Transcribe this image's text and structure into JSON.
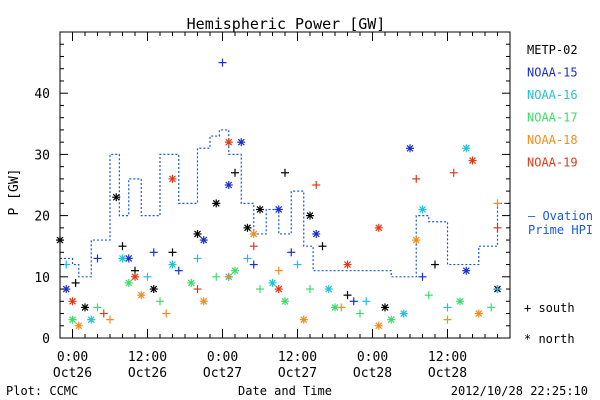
{
  "chart_data": {
    "type": "scatter",
    "title": "Hemispheric Power [GW]",
    "ylabel": "P [GW]",
    "xlabel": "Date and Time",
    "xlim": [
      "2012-10-25T22:00",
      "2012-10-28T22:00"
    ],
    "ylim": [
      0,
      50
    ],
    "yticks": [
      0,
      10,
      20,
      30,
      40
    ],
    "xticks": [
      {
        "time": "2012-10-26T00:00",
        "line1": "0:00",
        "line2": "Oct26"
      },
      {
        "time": "2012-10-26T12:00",
        "line1": "12:00",
        "line2": "Oct26"
      },
      {
        "time": "2012-10-27T00:00",
        "line1": "0:00",
        "line2": "Oct27"
      },
      {
        "time": "2012-10-27T12:00",
        "line1": "12:00",
        "line2": "Oct27"
      },
      {
        "time": "2012-10-28T00:00",
        "line1": "0:00",
        "line2": "Oct28"
      },
      {
        "time": "2012-10-28T12:00",
        "line1": "12:00",
        "line2": "Oct28"
      }
    ],
    "grid": false,
    "legend_position": "right",
    "symbols": {
      "south": "+",
      "north": "*"
    },
    "series": [
      {
        "name": "METP-02",
        "color": "#000000",
        "points": [
          [
            "2012-10-25T22:00",
            16,
            "north"
          ],
          [
            "2012-10-26T00:30",
            9,
            "south"
          ],
          [
            "2012-10-26T02:00",
            5,
            "north"
          ],
          [
            "2012-10-26T07:00",
            23,
            "north"
          ],
          [
            "2012-10-26T08:00",
            15,
            "south"
          ],
          [
            "2012-10-26T10:00",
            11,
            "south"
          ],
          [
            "2012-10-26T13:00",
            8,
            "north"
          ],
          [
            "2012-10-26T16:00",
            14,
            "south"
          ],
          [
            "2012-10-26T20:00",
            17,
            "north"
          ],
          [
            "2012-10-26T23:00",
            22,
            "north"
          ],
          [
            "2012-10-27T02:00",
            27,
            "south"
          ],
          [
            "2012-10-27T04:00",
            18,
            "north"
          ],
          [
            "2012-10-27T06:00",
            21,
            "north"
          ],
          [
            "2012-10-27T10:00",
            27,
            "south"
          ],
          [
            "2012-10-27T14:00",
            20,
            "north"
          ],
          [
            "2012-10-27T16:00",
            15,
            "south"
          ],
          [
            "2012-10-27T20:00",
            7,
            "south"
          ],
          [
            "2012-10-28T02:00",
            5,
            "north"
          ],
          [
            "2012-10-28T10:00",
            12,
            "south"
          ],
          [
            "2012-10-28T20:00",
            8,
            "north"
          ]
        ]
      },
      {
        "name": "NOAA-15",
        "color": "#1a2fc9",
        "points": [
          [
            "2012-10-25T23:00",
            8,
            "north"
          ],
          [
            "2012-10-26T04:00",
            13,
            "south"
          ],
          [
            "2012-10-26T09:00",
            13,
            "north"
          ],
          [
            "2012-10-26T13:00",
            14,
            "south"
          ],
          [
            "2012-10-26T17:00",
            11,
            "south"
          ],
          [
            "2012-10-26T21:00",
            16,
            "north"
          ],
          [
            "2012-10-27T00:00",
            45,
            "south"
          ],
          [
            "2012-10-27T01:00",
            25,
            "north"
          ],
          [
            "2012-10-27T03:00",
            32,
            "north"
          ],
          [
            "2012-10-27T05:00",
            12,
            "south"
          ],
          [
            "2012-10-27T09:00",
            21,
            "north"
          ],
          [
            "2012-10-27T11:00",
            14,
            "south"
          ],
          [
            "2012-10-27T15:00",
            17,
            "north"
          ],
          [
            "2012-10-27T21:00",
            6,
            "south"
          ],
          [
            "2012-10-28T06:00",
            31,
            "north"
          ],
          [
            "2012-10-28T08:00",
            10,
            "south"
          ],
          [
            "2012-10-28T15:00",
            11,
            "north"
          ],
          [
            "2012-10-28T20:00",
            8,
            "south"
          ]
        ]
      },
      {
        "name": "NOAA-16",
        "color": "#1fc2d9",
        "points": [
          [
            "2012-10-25T23:00",
            12,
            "south"
          ],
          [
            "2012-10-26T03:00",
            3,
            "north"
          ],
          [
            "2012-10-26T08:00",
            13,
            "north"
          ],
          [
            "2012-10-26T12:00",
            10,
            "south"
          ],
          [
            "2012-10-26T16:00",
            12,
            "north"
          ],
          [
            "2012-10-26T20:00",
            13,
            "south"
          ],
          [
            "2012-10-27T01:00",
            10,
            "north"
          ],
          [
            "2012-10-27T04:00",
            13,
            "south"
          ],
          [
            "2012-10-27T08:00",
            9,
            "north"
          ],
          [
            "2012-10-27T12:00",
            12,
            "south"
          ],
          [
            "2012-10-27T17:00",
            8,
            "north"
          ],
          [
            "2012-10-27T23:00",
            6,
            "south"
          ],
          [
            "2012-10-28T05:00",
            4,
            "north"
          ],
          [
            "2012-10-28T08:00",
            21,
            "north"
          ],
          [
            "2012-10-28T12:00",
            5,
            "south"
          ],
          [
            "2012-10-28T15:00",
            31,
            "north"
          ],
          [
            "2012-10-28T20:00",
            8,
            "south"
          ]
        ]
      },
      {
        "name": "NOAA-17",
        "color": "#3ddc6a",
        "points": [
          [
            "2012-10-26T00:00",
            3,
            "north"
          ],
          [
            "2012-10-26T04:00",
            5,
            "south"
          ],
          [
            "2012-10-26T09:00",
            9,
            "north"
          ],
          [
            "2012-10-26T14:00",
            6,
            "south"
          ],
          [
            "2012-10-26T19:00",
            9,
            "north"
          ],
          [
            "2012-10-26T23:00",
            10,
            "south"
          ],
          [
            "2012-10-27T02:00",
            11,
            "north"
          ],
          [
            "2012-10-27T06:00",
            8,
            "south"
          ],
          [
            "2012-10-27T10:00",
            6,
            "north"
          ],
          [
            "2012-10-27T14:00",
            8,
            "south"
          ],
          [
            "2012-10-27T18:00",
            5,
            "north"
          ],
          [
            "2012-10-27T22:00",
            4,
            "south"
          ],
          [
            "2012-10-28T03:00",
            3,
            "north"
          ],
          [
            "2012-10-28T09:00",
            7,
            "south"
          ],
          [
            "2012-10-28T14:00",
            6,
            "north"
          ],
          [
            "2012-10-28T19:00",
            5,
            "south"
          ]
        ]
      },
      {
        "name": "NOAA-18",
        "color": "#f08c1e",
        "points": [
          [
            "2012-10-26T01:00",
            2,
            "north"
          ],
          [
            "2012-10-26T06:00",
            3,
            "south"
          ],
          [
            "2012-10-26T11:00",
            7,
            "north"
          ],
          [
            "2012-10-26T15:00",
            4,
            "south"
          ],
          [
            "2012-10-26T21:00",
            6,
            "north"
          ],
          [
            "2012-10-27T01:00",
            10,
            "south"
          ],
          [
            "2012-10-27T05:00",
            17,
            "north"
          ],
          [
            "2012-10-27T09:00",
            11,
            "south"
          ],
          [
            "2012-10-27T13:00",
            3,
            "north"
          ],
          [
            "2012-10-27T19:00",
            5,
            "south"
          ],
          [
            "2012-10-28T01:00",
            2,
            "north"
          ],
          [
            "2012-10-28T07:00",
            16,
            "north"
          ],
          [
            "2012-10-28T12:00",
            3,
            "south"
          ],
          [
            "2012-10-28T17:00",
            4,
            "north"
          ],
          [
            "2012-10-28T20:00",
            22,
            "south"
          ]
        ]
      },
      {
        "name": "NOAA-19",
        "color": "#e03a1a",
        "points": [
          [
            "2012-10-26T00:00",
            6,
            "north"
          ],
          [
            "2012-10-26T05:00",
            4,
            "south"
          ],
          [
            "2012-10-26T10:00",
            10,
            "north"
          ],
          [
            "2012-10-26T16:00",
            26,
            "north"
          ],
          [
            "2012-10-26T20:00",
            8,
            "south"
          ],
          [
            "2012-10-27T01:00",
            32,
            "north"
          ],
          [
            "2012-10-27T05:00",
            15,
            "south"
          ],
          [
            "2012-10-27T09:00",
            8,
            "north"
          ],
          [
            "2012-10-27T15:00",
            25,
            "south"
          ],
          [
            "2012-10-27T20:00",
            12,
            "north"
          ],
          [
            "2012-10-28T01:00",
            18,
            "north"
          ],
          [
            "2012-10-28T07:00",
            26,
            "south"
          ],
          [
            "2012-10-28T13:00",
            27,
            "south"
          ],
          [
            "2012-10-28T16:00",
            29,
            "north"
          ],
          [
            "2012-10-28T20:00",
            18,
            "south"
          ]
        ]
      }
    ],
    "ovation": {
      "name": "Ovation Prime HPI",
      "color": "#1a5ad9",
      "points": [
        [
          "2012-10-25T22:00",
          13
        ],
        [
          "2012-10-26T00:00",
          12
        ],
        [
          "2012-10-26T01:00",
          10
        ],
        [
          "2012-10-26T03:00",
          16
        ],
        [
          "2012-10-26T06:00",
          30
        ],
        [
          "2012-10-26T07:30",
          20
        ],
        [
          "2012-10-26T09:00",
          26
        ],
        [
          "2012-10-26T11:00",
          20
        ],
        [
          "2012-10-26T14:00",
          30
        ],
        [
          "2012-10-26T17:00",
          22
        ],
        [
          "2012-10-26T20:00",
          31
        ],
        [
          "2012-10-26T22:00",
          33
        ],
        [
          "2012-10-26T23:30",
          34
        ],
        [
          "2012-10-27T01:00",
          30
        ],
        [
          "2012-10-27T03:00",
          22
        ],
        [
          "2012-10-27T05:00",
          17
        ],
        [
          "2012-10-27T07:00",
          21
        ],
        [
          "2012-10-27T09:00",
          17
        ],
        [
          "2012-10-27T11:00",
          24
        ],
        [
          "2012-10-27T13:00",
          15
        ],
        [
          "2012-10-27T14:30",
          11
        ],
        [
          "2012-10-28T00:00",
          11
        ],
        [
          "2012-10-28T03:00",
          10
        ],
        [
          "2012-10-28T07:00",
          20
        ],
        [
          "2012-10-28T09:00",
          19
        ],
        [
          "2012-10-28T12:00",
          12
        ],
        [
          "2012-10-28T17:00",
          15
        ],
        [
          "2012-10-28T20:00",
          22
        ],
        [
          "2012-10-28T22:00",
          15
        ]
      ]
    }
  },
  "legend_marker_south": "+ south",
  "legend_marker_north": "* north",
  "ovation_label_line1": "— Ovation",
  "ovation_label_line2": "Prime HPI",
  "footer_left": "Plot: CCMC",
  "footer_right": "2012/10/28 22:25:10"
}
